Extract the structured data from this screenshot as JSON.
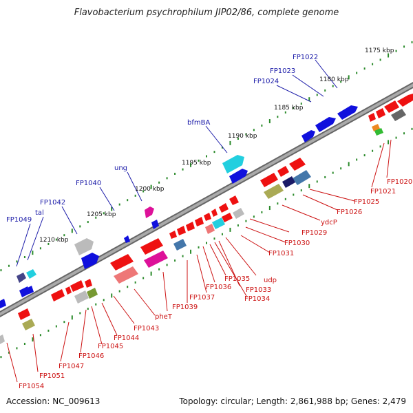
{
  "title": "Flavobacterium psychrophilum JIP02/86, complete genome",
  "footer": {
    "accession": "Accession: NC_009613",
    "summary": "Topology: circular; Length: 2,861,988 bp; Genes: 2,479"
  },
  "scale_ticks": [
    "1175 kbp",
    "1180 kbp",
    "1185 kbp",
    "1190 kbp",
    "1195 kbp",
    "1200 kbp",
    "1205 kbp",
    "1210 kbp"
  ],
  "forward_genes": [
    "FP1022",
    "FP1023",
    "FP1024",
    "bfmBA",
    "ung",
    "FP1040",
    "FP1042",
    "tal",
    "FP1049"
  ],
  "reverse_genes": [
    "FP1020",
    "FP1021",
    "FP1025",
    "FP1026",
    "ydcP",
    "FP1029",
    "FP1030",
    "FP1031",
    "udp",
    "FP1033",
    "FP1034",
    "FP1035",
    "FP1036",
    "FP1037",
    "FP1039",
    "pheT",
    "FP1043",
    "FP1044",
    "FP1045",
    "FP1046",
    "FP1047",
    "FP1051",
    "FP1054"
  ],
  "colors": {
    "forward": "#1010dd",
    "reverse": "#ee1111",
    "forward_label": "#1a1aa8",
    "reverse_label": "#cc1111",
    "backbone": "#888888",
    "tick_dots": "#2a8a2a"
  }
}
